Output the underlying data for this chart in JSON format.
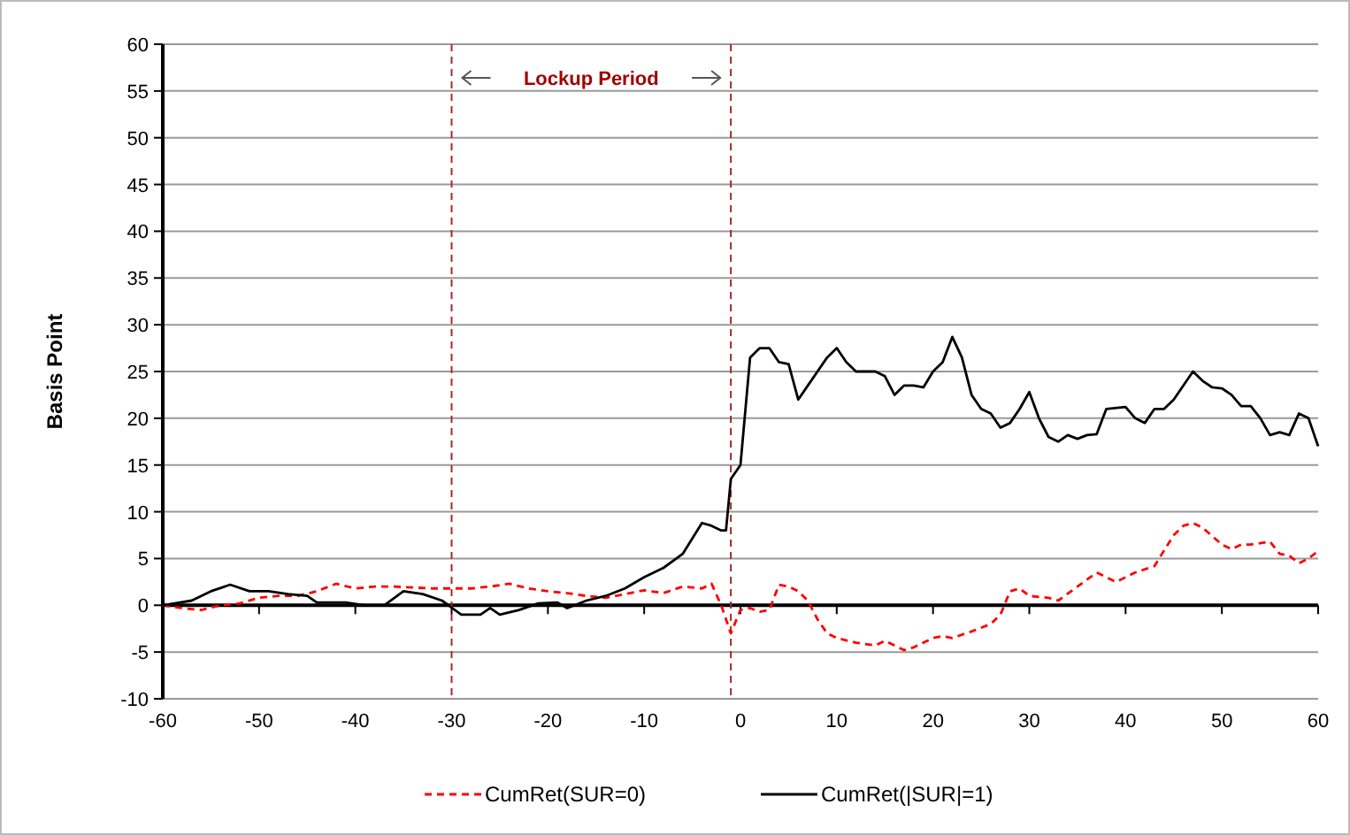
{
  "chart_data": {
    "type": "line",
    "ylabel": "Basis Point",
    "annotations": [
      "Lockup Period"
    ],
    "xlim": [
      -60,
      60
    ],
    "xticks": [
      -60,
      -50,
      -40,
      -30,
      -20,
      -10,
      0,
      10,
      20,
      30,
      40,
      50,
      60
    ],
    "ylim": [
      -10,
      60
    ],
    "yticks": [
      -10,
      -5,
      0,
      5,
      10,
      15,
      20,
      25,
      30,
      35,
      40,
      45,
      50,
      55,
      60
    ],
    "grid": "y",
    "legend": "bottom",
    "ref_lines": [
      {
        "axis": "x",
        "value": -30,
        "color": "#a52a2a",
        "line_style": "dashed"
      },
      {
        "axis": "x",
        "value": -1,
        "color": "#a52a2a",
        "line_style": "dashed"
      }
    ],
    "series": [
      {
        "name": "CumRet(SUR=0)",
        "color": "#ff0000",
        "line_style": "dashed",
        "x": [
          -60,
          -58,
          -56,
          -54,
          -52,
          -50,
          -48,
          -46,
          -44,
          -42,
          -40,
          -38,
          -36,
          -34,
          -32,
          -30,
          -28,
          -26,
          -24,
          -22,
          -20,
          -18,
          -16,
          -14,
          -12,
          -10,
          -8,
          -6,
          -4,
          -3,
          -2,
          -1,
          0,
          1,
          2,
          3,
          4,
          5,
          6,
          7,
          8,
          9,
          10,
          12,
          14,
          15,
          17,
          18,
          19,
          20,
          21,
          22,
          24,
          26,
          27,
          28,
          29,
          30,
          32,
          33,
          35,
          37,
          38,
          39,
          41,
          43,
          45,
          46,
          47,
          48,
          50,
          51,
          52,
          53,
          55,
          56,
          57,
          58,
          59,
          60
        ],
        "values": [
          0,
          -0.3,
          -0.5,
          0,
          0.2,
          0.8,
          1,
          1,
          1.5,
          2.3,
          1.8,
          2,
          2,
          1.9,
          1.8,
          1.8,
          1.8,
          2,
          2.3,
          1.8,
          1.5,
          1.3,
          1,
          0.8,
          1.2,
          1.6,
          1.3,
          2,
          1.8,
          2.3,
          0,
          -3,
          -0.5,
          -0.3,
          -0.7,
          -0.5,
          2.2,
          2,
          1.5,
          0.5,
          -1.5,
          -3,
          -3.5,
          -4,
          -4.3,
          -3.8,
          -4.8,
          -4.5,
          -4,
          -3.5,
          -3.3,
          -3.5,
          -2.8,
          -2,
          -1,
          1.5,
          1.8,
          1,
          0.8,
          0.5,
          2,
          3.5,
          3,
          2.5,
          3.5,
          4.2,
          7.5,
          8.5,
          8.8,
          8.3,
          6.5,
          6,
          6.5,
          6.5,
          6.8,
          5.5,
          5.3,
          4.5,
          5,
          5.8
        ]
      },
      {
        "name": "CumRet(|SUR|=1)",
        "color": "#000000",
        "line_style": "solid",
        "x": [
          -60,
          -57,
          -55,
          -53,
          -51,
          -49,
          -47,
          -45,
          -44,
          -41,
          -39,
          -37,
          -35,
          -33,
          -31,
          -29,
          -27,
          -26,
          -25,
          -23,
          -21,
          -19,
          -18,
          -16,
          -14,
          -12,
          -10,
          -8,
          -6,
          -4,
          -3,
          -2,
          -1.5,
          -1,
          0,
          1,
          2,
          3,
          4,
          5,
          6,
          7,
          8,
          9,
          10,
          11,
          12,
          14,
          15,
          16,
          17,
          18,
          19,
          20,
          21,
          22,
          23,
          24,
          25,
          26,
          27,
          28,
          29,
          30,
          31,
          32,
          33,
          34,
          35,
          36,
          37,
          38,
          40,
          41,
          42,
          43,
          44,
          45,
          47,
          48,
          49,
          50,
          51,
          52,
          53,
          54,
          55,
          56,
          57,
          58,
          59,
          60
        ],
        "values": [
          0,
          0.5,
          1.5,
          2.2,
          1.5,
          1.5,
          1.2,
          1,
          0.3,
          0.3,
          0,
          0,
          1.5,
          1.2,
          0.5,
          -1,
          -1,
          -0.3,
          -1,
          -0.5,
          0.2,
          0.3,
          -0.3,
          0.5,
          1,
          1.8,
          3,
          4,
          5.5,
          8.8,
          8.5,
          8,
          8,
          13.5,
          15,
          26.5,
          27.5,
          27.5,
          26,
          25.8,
          22,
          23.5,
          25,
          26.5,
          27.5,
          26,
          25,
          25,
          24.5,
          22.5,
          23.5,
          23.5,
          23.3,
          25,
          26,
          28.7,
          26.5,
          22.5,
          21,
          20.5,
          19,
          19.5,
          21,
          22.8,
          20,
          18,
          17.5,
          18.2,
          17.8,
          18.2,
          18.3,
          21,
          21.2,
          20,
          19.5,
          21,
          21,
          22,
          25,
          24,
          23.3,
          23.2,
          22.5,
          21.3,
          21.3,
          20,
          18.2,
          18.5,
          18.2,
          20.5,
          20,
          17
        ]
      }
    ]
  }
}
